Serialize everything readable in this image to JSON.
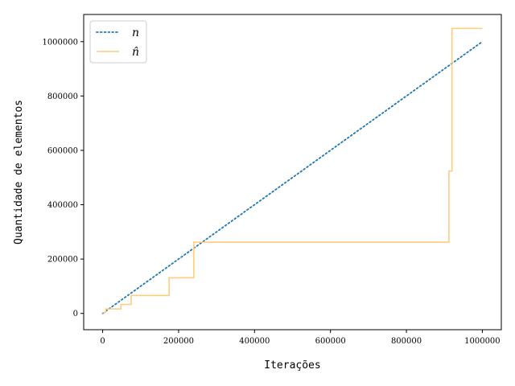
{
  "chart_data": {
    "type": "line",
    "xlabel": "Iterações",
    "ylabel": "Quantidade de elementos",
    "xlim": [
      -50000,
      1050000
    ],
    "ylim": [
      -60000,
      1100000
    ],
    "x_ticks": [
      0,
      200000,
      400000,
      600000,
      800000,
      1000000
    ],
    "x_tick_labels": [
      "0",
      "200000",
      "400000",
      "600000",
      "800000",
      "1000000"
    ],
    "y_ticks": [
      0,
      200000,
      400000,
      600000,
      800000,
      1000000
    ],
    "y_tick_labels": [
      "0",
      "200000",
      "400000",
      "600000",
      "800000",
      "1000000"
    ],
    "grid": false,
    "legend": "top-left",
    "series": [
      {
        "name": "n",
        "style": "dotted",
        "color": "#1f77b4",
        "x": [
          0,
          1000000
        ],
        "y": [
          0,
          1000000
        ]
      },
      {
        "name": "n̂",
        "style": "step",
        "color": "#ffcc80",
        "x": [
          0,
          0,
          8000,
          8000,
          48000,
          48000,
          75000,
          75000,
          175000,
          175000,
          240000,
          240000,
          912000,
          912000,
          920000,
          920000,
          1000000
        ],
        "y": [
          0,
          4000,
          4000,
          16500,
          16500,
          33000,
          33000,
          66000,
          66000,
          131000,
          131000,
          262000,
          262000,
          524000,
          524000,
          1048576,
          1048576
        ]
      }
    ]
  }
}
